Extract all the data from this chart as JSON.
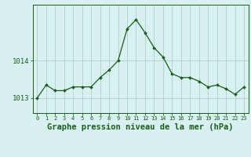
{
  "x": [
    0,
    1,
    2,
    3,
    4,
    5,
    6,
    7,
    8,
    9,
    10,
    11,
    12,
    13,
    14,
    15,
    16,
    17,
    18,
    19,
    20,
    21,
    22,
    23
  ],
  "y": [
    1013.0,
    1013.35,
    1013.2,
    1013.2,
    1013.3,
    1013.3,
    1013.3,
    1013.55,
    1013.75,
    1014.0,
    1014.85,
    1015.1,
    1014.75,
    1014.35,
    1014.1,
    1013.65,
    1013.55,
    1013.55,
    1013.45,
    1013.3,
    1013.35,
    1013.25,
    1013.1,
    1013.3
  ],
  "line_color": "#1a5c1a",
  "marker": "D",
  "marker_size": 2.0,
  "bg_color": "#d8f0f0",
  "grid_color": "#aecece",
  "xlabel": "Graphe pression niveau de la mer (hPa)",
  "xlabel_fontsize": 7.5,
  "ytick_labels": [
    "1013",
    "1014"
  ],
  "ytick_values": [
    1013,
    1014
  ],
  "ylim": [
    1012.6,
    1015.5
  ],
  "xlim": [
    -0.5,
    23.5
  ],
  "tick_color": "#1a5c1a",
  "spine_color": "#1a5c1a"
}
